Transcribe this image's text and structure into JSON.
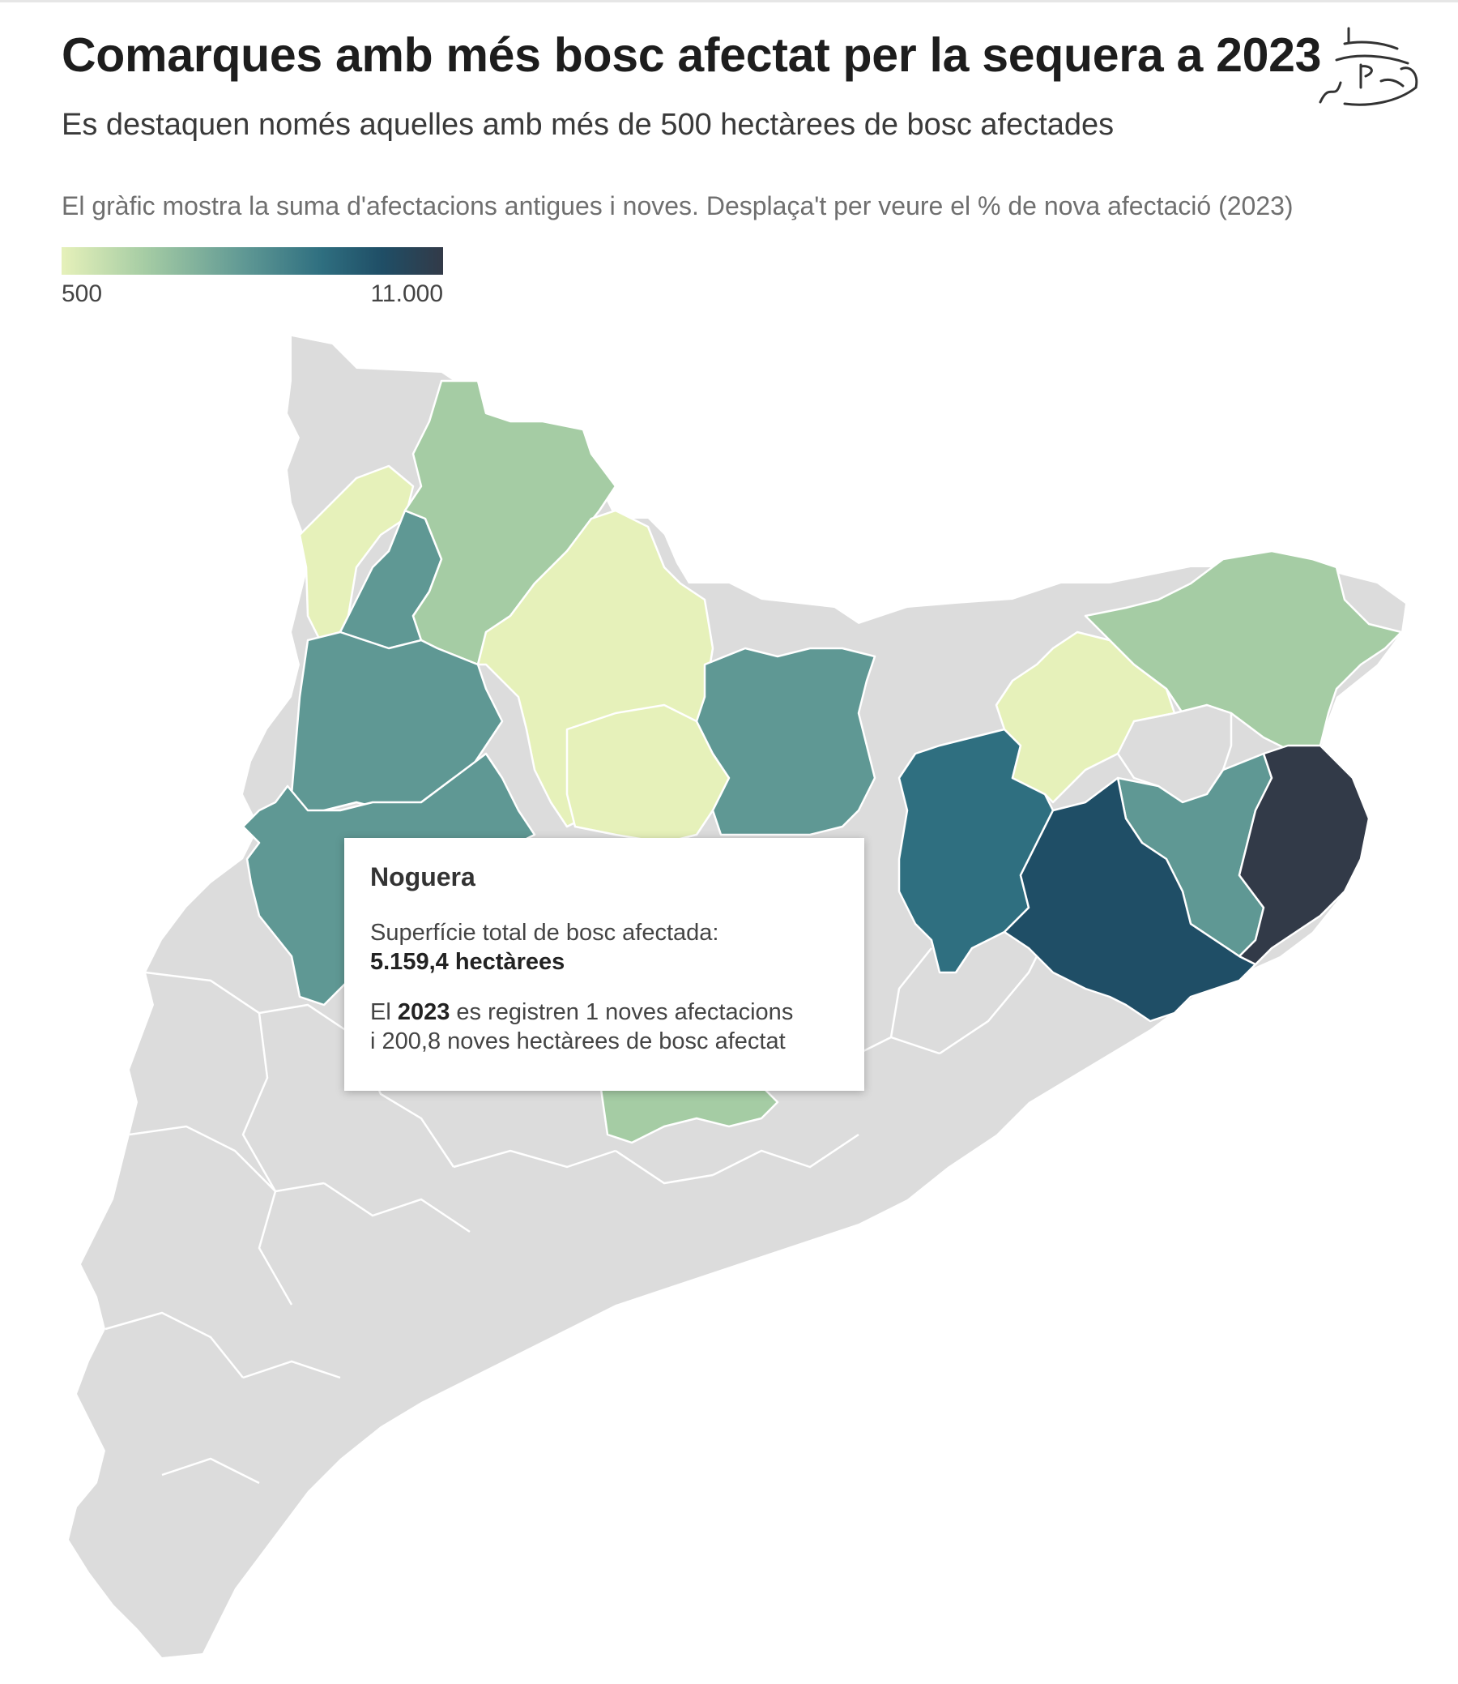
{
  "header": {
    "title": "Comarques amb més bosc afectat per la sequera a 2023",
    "subtitle": "Es destaquen només aquelles amb més de 500 hectàrees de bosc afectades",
    "note": "El gràfic mostra la suma d'afectacions antigues i noves. Desplaça't per veure el % de nova afectació (2023)"
  },
  "legend": {
    "min_label": "500",
    "max_label": "11.000",
    "colors": [
      "#e6f1ba",
      "#a5cca4",
      "#5f9894",
      "#2f6f80",
      "#1f4e66",
      "#323a48"
    ]
  },
  "map": {
    "base_color": "#dcdcdc",
    "highlight_outline": "#222222"
  },
  "tooltip": {
    "name": "Noguera",
    "line1": "Superfície total de bosc afectada:",
    "total": "5.159,4 hectàrees",
    "line2_pre": "El ",
    "line2_year": "2023",
    "line2_post": " es registren 1 noves afectacions",
    "line3": "i 200,8 noves hectàrees de bosc afectat"
  },
  "logo_icon": "ship-logo-icon"
}
